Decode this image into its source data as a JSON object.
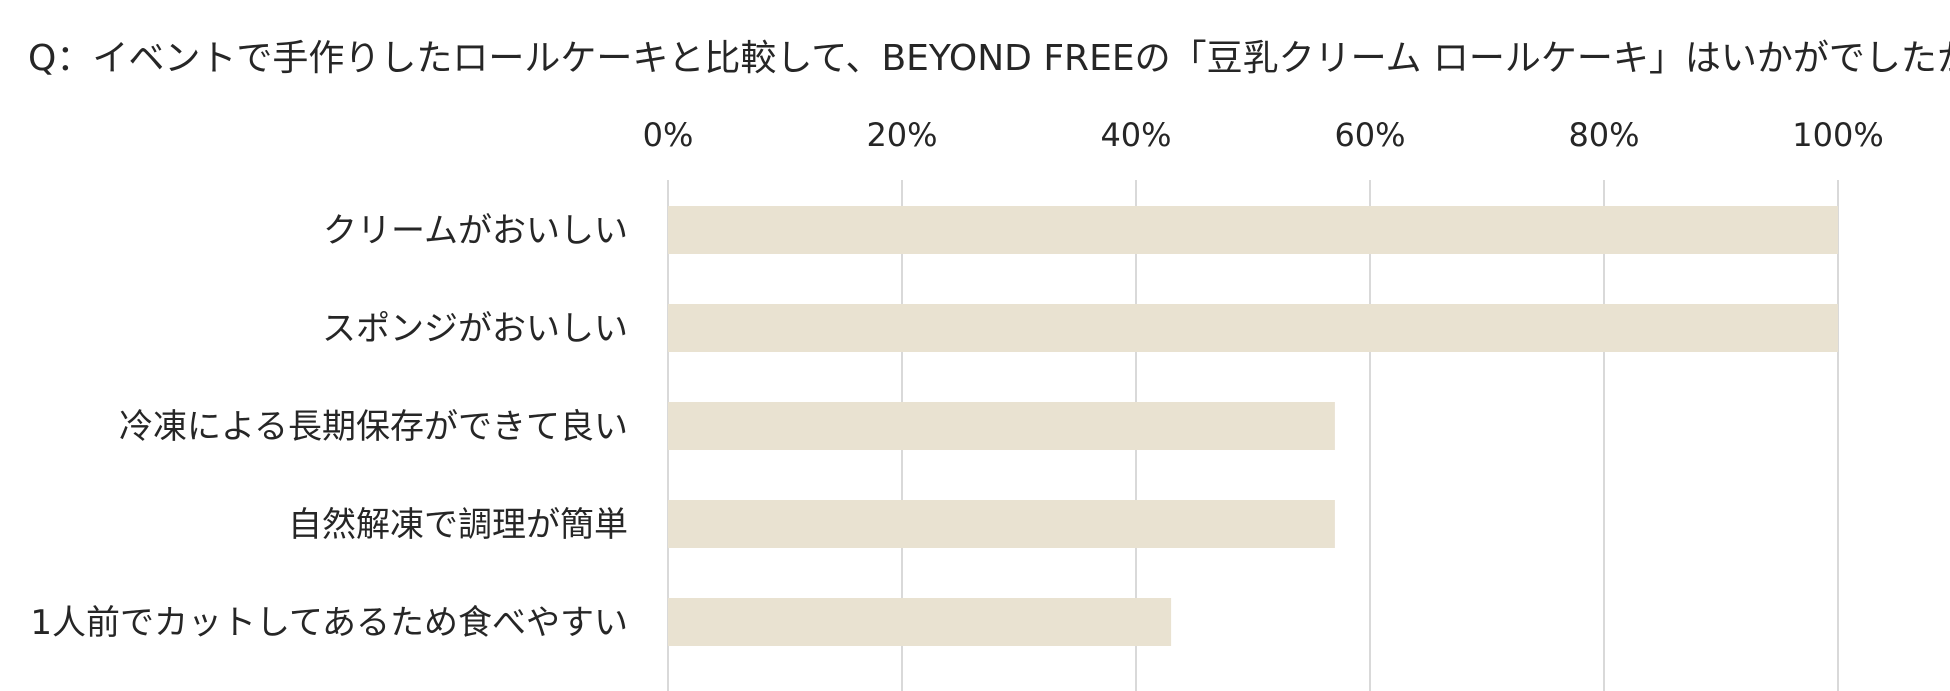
{
  "chart_data": {
    "type": "bar",
    "orientation": "horizontal",
    "title": "Q：イベントで手作りしたロールケーキと比較して、BEYOND FREEの「豆乳クリーム ロールケーキ」はいかがでしたか？",
    "categories": [
      "クリームがおいしい",
      "スポンジがおいしい",
      "冷凍による長期保存ができて良い",
      "自然解凍で調理が簡単",
      "1人前でカットしてあるため食べやすい"
    ],
    "values": [
      100,
      100,
      57,
      57,
      43
    ],
    "unit": "%",
    "xlim": [
      0,
      100
    ],
    "xticks": [
      0,
      20,
      40,
      60,
      80,
      100
    ],
    "xtick_labels": [
      "0%",
      "20%",
      "40%",
      "60%",
      "80%",
      "100%"
    ],
    "x_axis_position": "top",
    "grid": true,
    "legend": "none",
    "colors": {
      "bar": "#e9e2d1",
      "grid": "#d9d9d9",
      "text": "#262626"
    }
  }
}
